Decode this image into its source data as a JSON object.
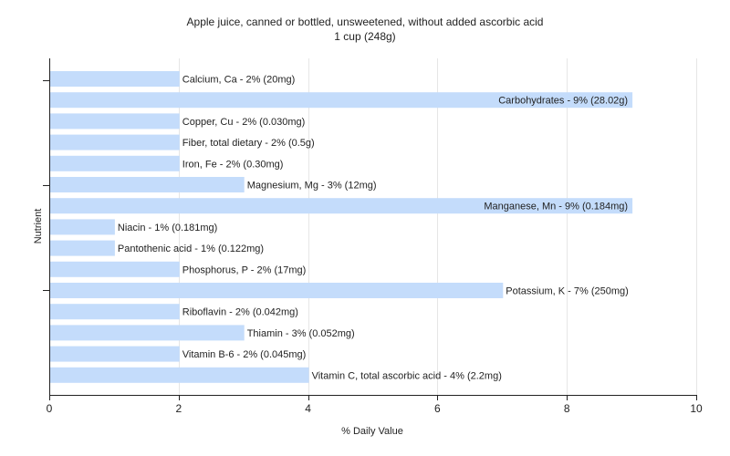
{
  "chart_data": {
    "type": "bar",
    "orientation": "horizontal",
    "title": "Apple juice, canned or bottled, unsweetened, without added ascorbic acid",
    "subtitle": "1 cup (248g)",
    "xlabel": "% Daily Value",
    "ylabel": "Nutrient",
    "xlim": [
      0,
      10
    ],
    "xticks": [
      0,
      2,
      4,
      6,
      8,
      10
    ],
    "grid": true,
    "bar_color": "#c4dcfb",
    "categories": [
      "Calcium, Ca",
      "Carbohydrates",
      "Copper, Cu",
      "Fiber, total dietary",
      "Iron, Fe",
      "Magnesium, Mg",
      "Manganese, Mn",
      "Niacin",
      "Pantothenic acid",
      "Phosphorus, P",
      "Potassium, K",
      "Riboflavin",
      "Thiamin",
      "Vitamin B-6",
      "Vitamin C, total ascorbic acid"
    ],
    "values": [
      2,
      9,
      2,
      2,
      2,
      3,
      9,
      1,
      1,
      2,
      7,
      2,
      3,
      2,
      4
    ],
    "labels": [
      "Calcium, Ca - 2% (20mg)",
      "Carbohydrates - 9% (28.02g)",
      "Copper, Cu - 2% (0.030mg)",
      "Fiber, total dietary - 2% (0.5g)",
      "Iron, Fe - 2% (0.30mg)",
      "Magnesium, Mg - 3% (12mg)",
      "Manganese, Mn - 9% (0.184mg)",
      "Niacin - 1% (0.181mg)",
      "Pantothenic acid - 1% (0.122mg)",
      "Phosphorus, P - 2% (17mg)",
      "Potassium, K - 7% (250mg)",
      "Riboflavin - 2% (0.042mg)",
      "Thiamin - 3% (0.052mg)",
      "Vitamin B-6 - 2% (0.045mg)",
      "Vitamin C, total ascorbic acid - 4% (2.2mg)"
    ]
  }
}
